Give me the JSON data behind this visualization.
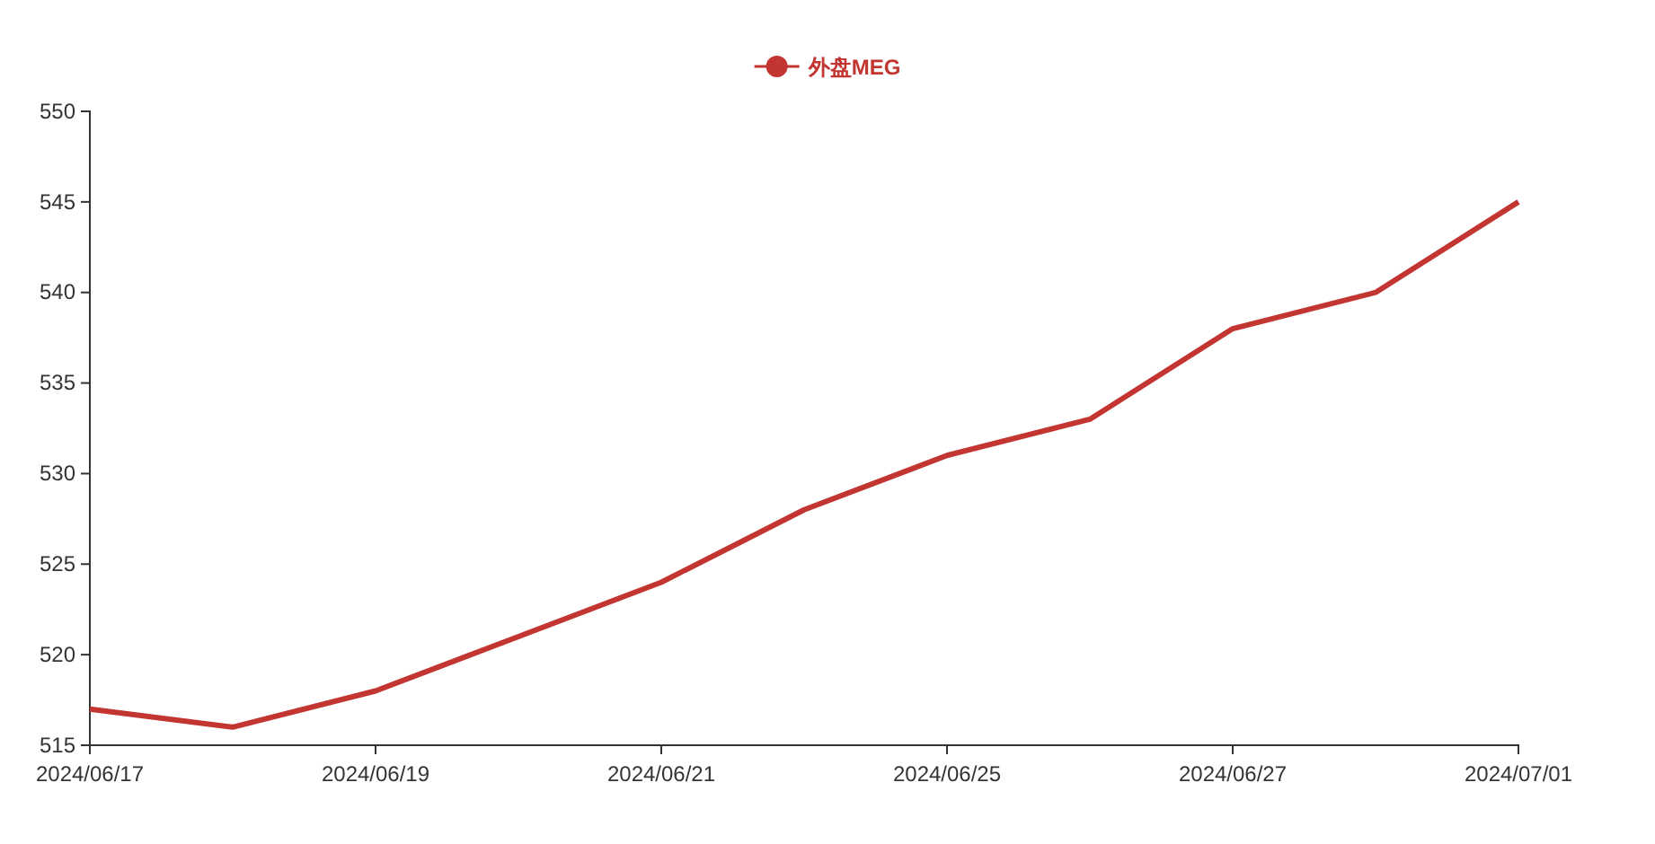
{
  "chart_data": {
    "type": "line",
    "categories": [
      "2024/06/17",
      null,
      "2024/06/19",
      null,
      "2024/06/21",
      null,
      "2024/06/25",
      null,
      "2024/06/27",
      null,
      "2024/07/01"
    ],
    "series": [
      {
        "name": "外盘MEG",
        "color": "#c23531",
        "values": [
          517,
          516,
          518,
          521,
          524,
          528,
          531,
          533,
          538,
          540,
          545
        ]
      }
    ],
    "ylim": [
      515,
      550
    ],
    "yticks": [
      515,
      520,
      525,
      530,
      535,
      540,
      545,
      550
    ],
    "grid": false,
    "legend": "top",
    "marker": "none",
    "line_style": "solid"
  }
}
